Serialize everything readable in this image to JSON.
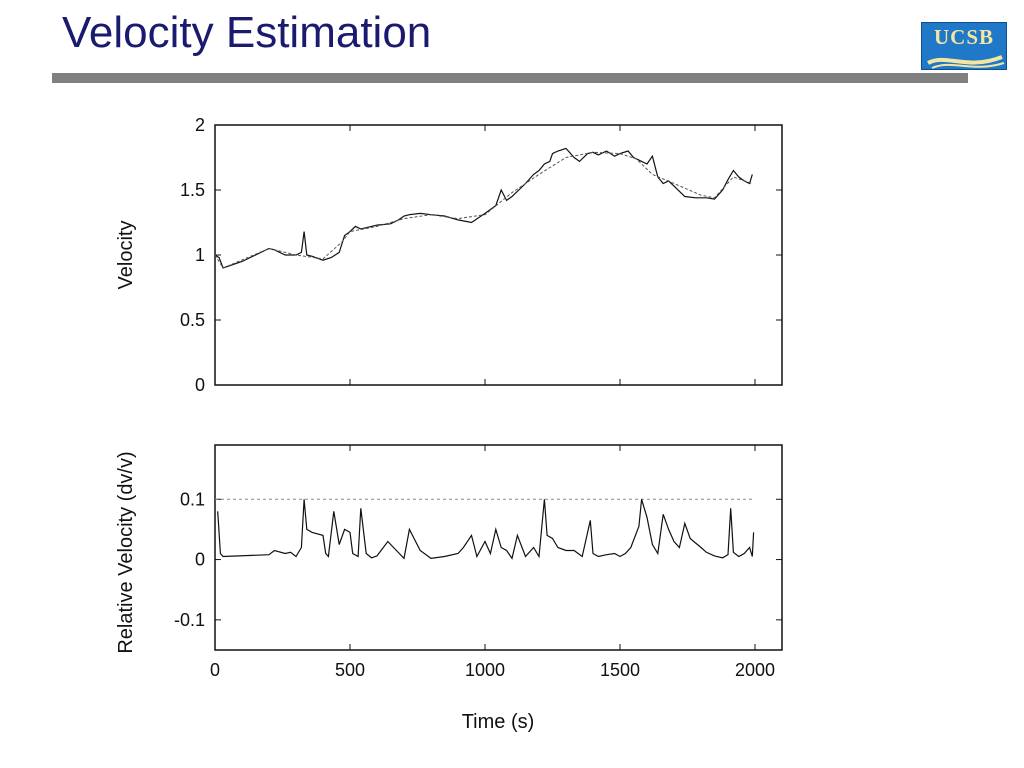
{
  "slide": {
    "title": "Velocity Estimation",
    "logo_text": "UCSB"
  },
  "colors": {
    "title": "#1a1a6e",
    "rule": "#808080",
    "logo_bg": "#1f78c8",
    "logo_text": "#f2e6a0",
    "line": "#111111"
  },
  "chart_data": [
    {
      "type": "line",
      "title": "",
      "xlabel": "",
      "ylabel": "Velocity",
      "xlim": [
        0,
        2100
      ],
      "ylim": [
        0,
        2
      ],
      "xticks": [
        0,
        500,
        1000,
        1500,
        2000
      ],
      "xtick_labels": [
        "",
        "",
        "",
        "",
        ""
      ],
      "yticks": [
        0,
        0.5,
        1,
        1.5,
        2
      ],
      "ytick_labels": [
        "0",
        "0.5",
        "1",
        "1.5",
        "2"
      ],
      "grid": false,
      "series": [
        {
          "style": "solid",
          "x": [
            0,
            15,
            30,
            100,
            200,
            220,
            260,
            300,
            320,
            330,
            340,
            360,
            400,
            430,
            460,
            480,
            500,
            520,
            540,
            560,
            600,
            650,
            680,
            700,
            720,
            760,
            800,
            850,
            900,
            950,
            1000,
            1040,
            1060,
            1080,
            1100,
            1150,
            1180,
            1200,
            1220,
            1240,
            1250,
            1270,
            1300,
            1330,
            1350,
            1380,
            1400,
            1420,
            1450,
            1480,
            1500,
            1530,
            1550,
            1580,
            1600,
            1620,
            1640,
            1660,
            1680,
            1700,
            1740,
            1780,
            1820,
            1850,
            1880,
            1900,
            1920,
            1940,
            1960,
            1980,
            1990
          ],
          "y": [
            1.0,
            0.98,
            0.9,
            0.95,
            1.05,
            1.04,
            1.0,
            1.0,
            1.02,
            1.18,
            1.0,
            0.99,
            0.96,
            0.98,
            1.02,
            1.15,
            1.18,
            1.22,
            1.2,
            1.21,
            1.23,
            1.24,
            1.27,
            1.3,
            1.31,
            1.32,
            1.31,
            1.3,
            1.27,
            1.25,
            1.32,
            1.38,
            1.5,
            1.42,
            1.45,
            1.55,
            1.62,
            1.65,
            1.7,
            1.72,
            1.78,
            1.8,
            1.82,
            1.75,
            1.72,
            1.78,
            1.79,
            1.77,
            1.8,
            1.76,
            1.78,
            1.8,
            1.75,
            1.72,
            1.7,
            1.76,
            1.6,
            1.55,
            1.57,
            1.53,
            1.45,
            1.44,
            1.44,
            1.43,
            1.5,
            1.58,
            1.65,
            1.6,
            1.57,
            1.55,
            1.62
          ]
        },
        {
          "style": "dotted",
          "x": [
            0,
            30,
            200,
            300,
            400,
            470,
            500,
            600,
            700,
            800,
            900,
            1000,
            1100,
            1200,
            1300,
            1400,
            1500,
            1560,
            1620,
            1700,
            1800,
            1850,
            1920,
            1990
          ],
          "y": [
            1.0,
            0.9,
            1.05,
            1.0,
            0.97,
            1.1,
            1.18,
            1.22,
            1.28,
            1.31,
            1.28,
            1.31,
            1.48,
            1.62,
            1.75,
            1.79,
            1.78,
            1.74,
            1.62,
            1.55,
            1.46,
            1.44,
            1.6,
            1.55
          ]
        }
      ]
    },
    {
      "type": "line",
      "title": "",
      "xlabel": "Time (s)",
      "ylabel": "Relative Velocity (dv/v)",
      "xlim": [
        0,
        2100
      ],
      "ylim": [
        -0.15,
        0.19
      ],
      "xticks": [
        0,
        500,
        1000,
        1500,
        2000
      ],
      "xtick_labels": [
        "0",
        "500",
        "1000",
        "1500",
        "2000"
      ],
      "yticks": [
        -0.1,
        0,
        0.1
      ],
      "ytick_labels": [
        "-0.1",
        "0",
        "0.1"
      ],
      "grid": false,
      "threshold": 0.1,
      "series": [
        {
          "style": "solid",
          "x": [
            10,
            20,
            30,
            200,
            220,
            260,
            280,
            300,
            320,
            330,
            340,
            360,
            400,
            410,
            420,
            440,
            460,
            480,
            500,
            510,
            530,
            540,
            560,
            580,
            600,
            640,
            700,
            720,
            760,
            800,
            850,
            900,
            920,
            950,
            970,
            1000,
            1020,
            1040,
            1060,
            1080,
            1100,
            1120,
            1150,
            1180,
            1200,
            1220,
            1230,
            1250,
            1270,
            1300,
            1330,
            1360,
            1390,
            1400,
            1420,
            1450,
            1480,
            1500,
            1520,
            1540,
            1570,
            1580,
            1600,
            1620,
            1640,
            1660,
            1680,
            1700,
            1720,
            1740,
            1760,
            1800,
            1820,
            1850,
            1880,
            1900,
            1910,
            1920,
            1940,
            1960,
            1980,
            1990,
            1995
          ],
          "y": [
            0.08,
            0.01,
            0.005,
            0.008,
            0.015,
            0.01,
            0.012,
            0.005,
            0.02,
            0.1,
            0.05,
            0.045,
            0.04,
            0.01,
            0.005,
            0.08,
            0.025,
            0.05,
            0.045,
            0.01,
            0.005,
            0.085,
            0.01,
            0.003,
            0.006,
            0.03,
            0.002,
            0.05,
            0.015,
            0.002,
            0.005,
            0.01,
            0.02,
            0.04,
            0.005,
            0.03,
            0.01,
            0.05,
            0.02,
            0.015,
            0.002,
            0.04,
            0.005,
            0.02,
            0.005,
            0.1,
            0.04,
            0.035,
            0.02,
            0.015,
            0.015,
            0.005,
            0.065,
            0.01,
            0.005,
            0.008,
            0.01,
            0.005,
            0.01,
            0.02,
            0.055,
            0.1,
            0.07,
            0.025,
            0.01,
            0.075,
            0.05,
            0.03,
            0.02,
            0.06,
            0.035,
            0.02,
            0.012,
            0.006,
            0.003,
            0.008,
            0.085,
            0.012,
            0.005,
            0.01,
            0.02,
            0.005,
            0.045
          ]
        }
      ]
    }
  ]
}
